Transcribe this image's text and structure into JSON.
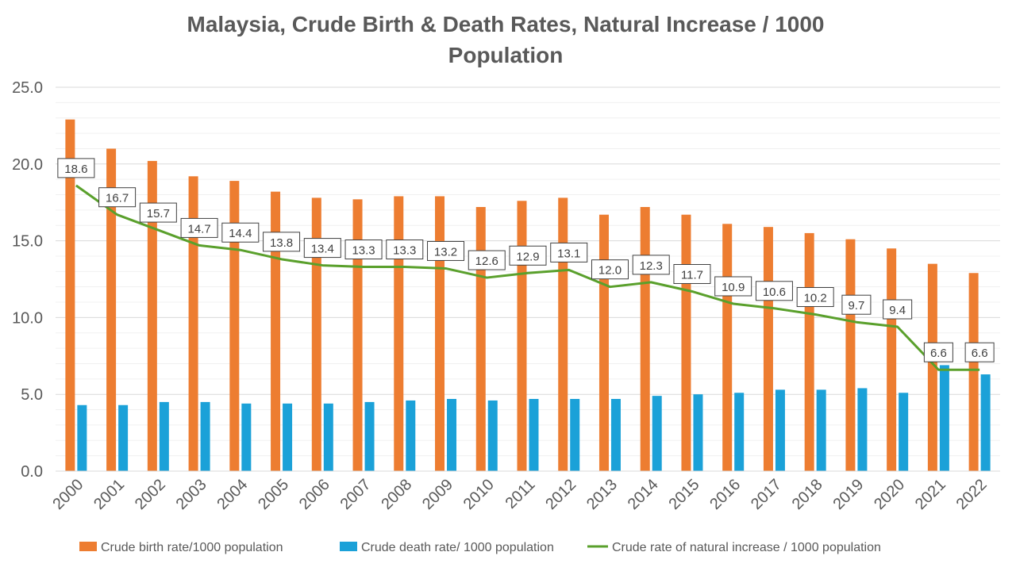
{
  "chart_data": {
    "type": "bar",
    "title_line1": "Malaysia, Crude Birth & Death Rates, Natural Increase / 1000",
    "title_line2": "Population",
    "categories": [
      "2000",
      "2001",
      "2002",
      "2003",
      "2004",
      "2005",
      "2006",
      "2007",
      "2008",
      "2009",
      "2010",
      "2011",
      "2012",
      "2013",
      "2014",
      "2015",
      "2016",
      "2017",
      "2018",
      "2019",
      "2020",
      "2021",
      "2022"
    ],
    "ylim": [
      0,
      25
    ],
    "yticks": [
      "0.0",
      "5.0",
      "10.0",
      "15.0",
      "20.0",
      "25.0"
    ],
    "grid": true,
    "legend_position": "bottom",
    "series": [
      {
        "name": "Crude birth rate/1000 population",
        "type": "bar",
        "color": "#ED7D31",
        "values": [
          22.9,
          21.0,
          20.2,
          19.2,
          18.9,
          18.2,
          17.8,
          17.7,
          17.9,
          17.9,
          17.2,
          17.6,
          17.8,
          16.7,
          17.2,
          16.7,
          16.1,
          15.9,
          15.5,
          15.1,
          14.5,
          13.5,
          12.9
        ]
      },
      {
        "name": "Crude death rate/ 1000 population",
        "type": "bar",
        "color": "#1BA1D8",
        "values": [
          4.3,
          4.3,
          4.5,
          4.5,
          4.4,
          4.4,
          4.4,
          4.5,
          4.6,
          4.7,
          4.6,
          4.7,
          4.7,
          4.7,
          4.9,
          5.0,
          5.1,
          5.3,
          5.3,
          5.4,
          5.1,
          6.9,
          6.3
        ]
      },
      {
        "name": "Crude rate of natural increase / 1000 population",
        "type": "line",
        "color": "#5AA02C",
        "values": [
          18.6,
          16.7,
          15.7,
          14.7,
          14.4,
          13.8,
          13.4,
          13.3,
          13.3,
          13.2,
          12.6,
          12.9,
          13.1,
          12.0,
          12.3,
          11.7,
          10.9,
          10.6,
          10.2,
          9.7,
          9.4,
          6.6,
          6.6
        ],
        "labels": [
          "18.6",
          "16.7",
          "15.7",
          "14.7",
          "14.4",
          "13.8",
          "13.4",
          "13.3",
          "13.3",
          "13.2",
          "12.6",
          "12.9",
          "13.1",
          "12.0",
          "12.3",
          "11.7",
          "10.9",
          "10.6",
          "10.2",
          "9.7",
          "9.4",
          "6.6",
          "6.6"
        ]
      }
    ]
  }
}
